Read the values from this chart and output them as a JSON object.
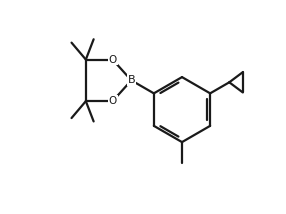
{
  "background_color": "#ffffff",
  "line_color": "#1a1a1a",
  "line_width": 1.6,
  "font_size": 7.5,
  "figsize": [
    2.86,
    2.14
  ],
  "dpi": 100,
  "xlim": [
    -1.5,
    9.5
  ],
  "ylim": [
    -1.2,
    7.0
  ],
  "bx": 5.5,
  "by": 2.8,
  "br": 1.25,
  "hex_angles": [
    90,
    30,
    -30,
    -90,
    -150,
    150
  ]
}
